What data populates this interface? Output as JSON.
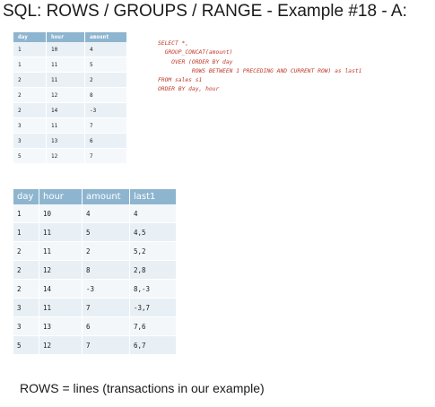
{
  "title": "SQL: ROWS / GROUPS / RANGE - Example #18 - A:",
  "source_table": {
    "headers": [
      "day",
      "hour",
      "amount"
    ],
    "rows": [
      [
        "1",
        "10",
        "4"
      ],
      [
        "1",
        "11",
        "5"
      ],
      [
        "2",
        "11",
        "2"
      ],
      [
        "2",
        "12",
        "8"
      ],
      [
        "2",
        "14",
        "-3"
      ],
      [
        "3",
        "11",
        "7"
      ],
      [
        "3",
        "13",
        "6"
      ],
      [
        "5",
        "12",
        "7"
      ]
    ]
  },
  "sql_lines": [
    "SELECT *,",
    "  GROUP_CONCAT(amount)",
    "    OVER (ORDER BY day",
    "          ROWS BETWEEN 1 PRECEDING AND CURRENT ROW) as last1",
    "FROM sales s1",
    "ORDER BY day, hour"
  ],
  "result_table": {
    "headers": [
      "day",
      "hour",
      "amount",
      "last1"
    ],
    "rows": [
      [
        "1",
        "10",
        "4",
        "4"
      ],
      [
        "1",
        "11",
        "5",
        "4,5"
      ],
      [
        "2",
        "11",
        "2",
        "5,2"
      ],
      [
        "2",
        "12",
        "8",
        "2,8"
      ],
      [
        "2",
        "14",
        "-3",
        "8,-3"
      ],
      [
        "3",
        "11",
        "7",
        "-3,7"
      ],
      [
        "3",
        "13",
        "6",
        "7,6"
      ],
      [
        "5",
        "12",
        "7",
        "6,7"
      ]
    ]
  },
  "footer": "ROWS = lines (transactions in our example)",
  "colors": {
    "header_bg": "#8eb5cf",
    "sql_text": "#c0392b"
  }
}
